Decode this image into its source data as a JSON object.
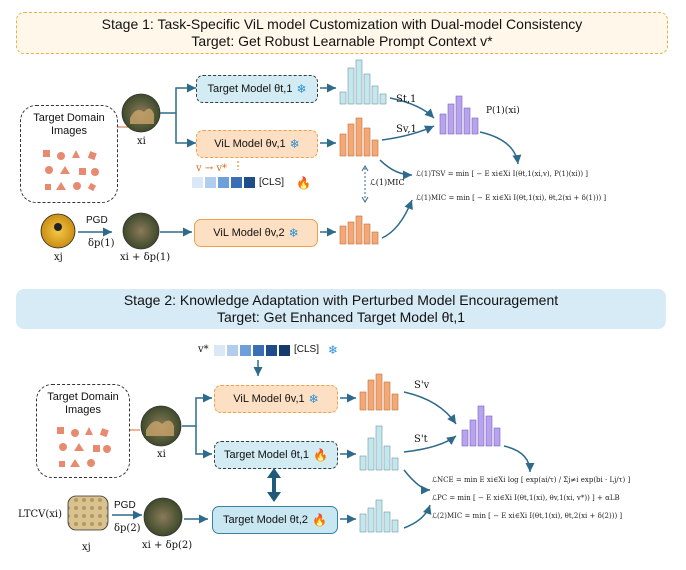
{
  "stage1": {
    "line1": "Stage 1: Task-Specific ViL model Customization with Dual-model Consistency",
    "line2": "Target: Get Robust Learnable Prompt Context v*"
  },
  "stage2": {
    "line1": "Stage 2: Knowledge Adaptation with Perturbed Model Encouragement",
    "line2": "Target: Get Enhanced Target Model θt,1"
  },
  "target_domain_images": "Target Domain Images",
  "s1": {
    "xi": "xi",
    "xj": "xj",
    "pgd": "PGD",
    "delta": "δp(1)",
    "xi_plus": "xi + δp(1)",
    "target_model": "Target Model θt,1",
    "vil_model_1": "ViL Model θv,1",
    "vil_model_2": "ViL Model θv,2",
    "prompt_label": "v → v*",
    "cls": "[CLS]",
    "s_t1": "St,1",
    "s_v1": "Sv,1",
    "p1": "P(1)(xi)",
    "l_mic_side": "ℒ(1)MIC",
    "f_tsv": "ℒ(1)TSV = min [ − E xi∈Xi I(θt,1(xi,v), P(1)(xi)) ]",
    "f_mic": "ℒ(1)MIC = min [ − E xi∈Xi I(θt,1(xi), θt,2(xi + δ(1))) ]"
  },
  "s2": {
    "xi": "xi",
    "xj": "xj",
    "pgd": "PGD",
    "delta": "δp(2)",
    "xi_plus": "xi + δp(2)",
    "ltcv": "LTCV(xi)",
    "vstar": "v*",
    "cls": "[CLS]",
    "vil_model_1": "ViL Model θv,1",
    "target_model_1": "Target Model θt,1",
    "target_model_2": "Target Model θt,2",
    "s_v": "S'v",
    "s_t": "S't",
    "f_nce": "ℒNCE = min E xi∈Xi log [ exp(ai/τ) / Σj≠i exp(bi · Lj/τ) ]",
    "f_pc": "ℒPC = min [ − E xi∈Xi I(θt,1(xi), θv,1(xi, v*)) ] + αLB",
    "f_mic": "ℒ(2)MIC = min [ − E xi∈Xi I(θt,1(xi), θt,2(xi + δ(2))) ]"
  },
  "colors": {
    "teal_bars": "#c5e6ec",
    "orange_bars": "#f4a878",
    "purple_bars": "#b8a3ee",
    "arrow": "#2d6a8c",
    "prompt_blues": [
      "#d9e7f7",
      "#b0cdee",
      "#6f9fd8",
      "#3a6fb8",
      "#1f4c8a",
      "#163a6b"
    ]
  }
}
